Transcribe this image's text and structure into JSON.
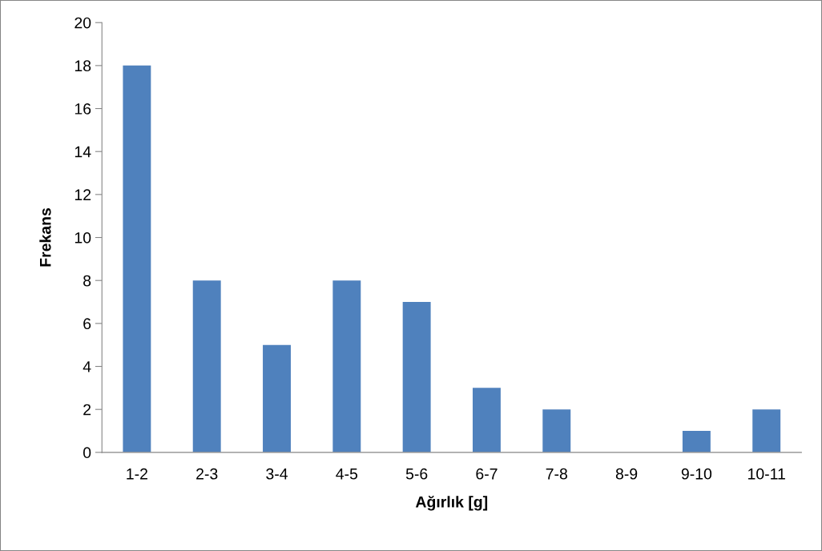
{
  "chart_data": {
    "type": "bar",
    "xlabel": "Ağırlık [g]",
    "ylabel": "Frekans",
    "categories": [
      "1-2",
      "2-3",
      "3-4",
      "4-5",
      "5-6",
      "6-7",
      "7-8",
      "8-9",
      "9-10",
      "10-11"
    ],
    "values": [
      18,
      8,
      5,
      8,
      7,
      3,
      2,
      0,
      1,
      2
    ],
    "color": "#4f81bd",
    "ylim": [
      0,
      20
    ],
    "yticks": [
      0,
      2,
      4,
      6,
      8,
      10,
      12,
      14,
      16,
      18,
      20
    ],
    "grid": false,
    "legend": false
  }
}
